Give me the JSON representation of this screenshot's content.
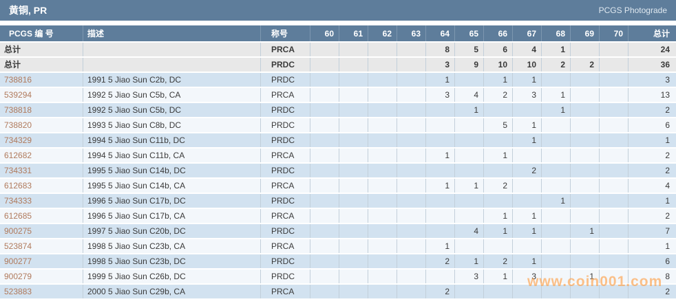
{
  "header": {
    "title": "黄铜, PR",
    "photograde_label": "PCGS Photograde"
  },
  "watermark": "www.coin001.com",
  "colors": {
    "header_bg": "#5e7d9b",
    "row_blue": "#d2e2f0",
    "row_white": "#f3f7fb",
    "row_total_bg": "#e8e8e8",
    "pcgs_number_link": "#b07a5c",
    "watermark": "#ff9d42"
  },
  "table": {
    "columns": {
      "pcgs_number": "PCGS 编 号",
      "description": "描述",
      "designation": "称号",
      "grades": [
        "60",
        "61",
        "62",
        "63",
        "64",
        "65",
        "66",
        "67",
        "68",
        "69",
        "70"
      ],
      "total": "总计"
    },
    "total_rows": [
      {
        "label": "总计",
        "description": "",
        "designation": "PRCA",
        "grades": [
          "",
          "",
          "",
          "",
          "8",
          "5",
          "6",
          "4",
          "1",
          "",
          ""
        ],
        "total": "24"
      },
      {
        "label": "总计",
        "description": "",
        "designation": "PRDC",
        "grades": [
          "",
          "",
          "",
          "",
          "3",
          "9",
          "10",
          "10",
          "2",
          "2",
          ""
        ],
        "total": "36"
      }
    ],
    "rows": [
      {
        "pcgs_number": "738816",
        "description": "1991 5 Jiao Sun C2b, DC",
        "designation": "PRDC",
        "grades": [
          "",
          "",
          "",
          "",
          "1",
          "",
          "1",
          "1",
          "",
          "",
          ""
        ],
        "total": "3"
      },
      {
        "pcgs_number": "539294",
        "description": "1992 5 Jiao Sun C5b, CA",
        "designation": "PRCA",
        "grades": [
          "",
          "",
          "",
          "",
          "3",
          "4",
          "2",
          "3",
          "1",
          "",
          ""
        ],
        "total": "13"
      },
      {
        "pcgs_number": "738818",
        "description": "1992 5 Jiao Sun C5b, DC",
        "designation": "PRDC",
        "grades": [
          "",
          "",
          "",
          "",
          "",
          "1",
          "",
          "",
          "1",
          "",
          ""
        ],
        "total": "2"
      },
      {
        "pcgs_number": "738820",
        "description": "1993 5 Jiao Sun C8b, DC",
        "designation": "PRDC",
        "grades": [
          "",
          "",
          "",
          "",
          "",
          "",
          "5",
          "1",
          "",
          "",
          ""
        ],
        "total": "6"
      },
      {
        "pcgs_number": "734329",
        "description": "1994 5 Jiao Sun C11b, DC",
        "designation": "PRDC",
        "grades": [
          "",
          "",
          "",
          "",
          "",
          "",
          "",
          "1",
          "",
          "",
          ""
        ],
        "total": "1"
      },
      {
        "pcgs_number": "612682",
        "description": "1994 5 Jiao Sun C11b, CA",
        "designation": "PRCA",
        "grades": [
          "",
          "",
          "",
          "",
          "1",
          "",
          "1",
          "",
          "",
          "",
          ""
        ],
        "total": "2"
      },
      {
        "pcgs_number": "734331",
        "description": "1995 5 Jiao Sun C14b, DC",
        "designation": "PRDC",
        "grades": [
          "",
          "",
          "",
          "",
          "",
          "",
          "",
          "2",
          "",
          "",
          ""
        ],
        "total": "2"
      },
      {
        "pcgs_number": "612683",
        "description": "1995 5 Jiao Sun C14b, CA",
        "designation": "PRCA",
        "grades": [
          "",
          "",
          "",
          "",
          "1",
          "1",
          "2",
          "",
          "",
          "",
          ""
        ],
        "total": "4"
      },
      {
        "pcgs_number": "734333",
        "description": "1996 5 Jiao Sun C17b, DC",
        "designation": "PRDC",
        "grades": [
          "",
          "",
          "",
          "",
          "",
          "",
          "",
          "",
          "1",
          "",
          ""
        ],
        "total": "1"
      },
      {
        "pcgs_number": "612685",
        "description": "1996 5 Jiao Sun C17b, CA",
        "designation": "PRCA",
        "grades": [
          "",
          "",
          "",
          "",
          "",
          "",
          "1",
          "1",
          "",
          "",
          ""
        ],
        "total": "2"
      },
      {
        "pcgs_number": "900275",
        "description": "1997 5 Jiao Sun C20b, DC",
        "designation": "PRDC",
        "grades": [
          "",
          "",
          "",
          "",
          "",
          "4",
          "1",
          "1",
          "",
          "1",
          ""
        ],
        "total": "7"
      },
      {
        "pcgs_number": "523874",
        "description": "1998 5 Jiao Sun C23b, CA",
        "designation": "PRCA",
        "grades": [
          "",
          "",
          "",
          "",
          "1",
          "",
          "",
          "",
          "",
          "",
          ""
        ],
        "total": "1"
      },
      {
        "pcgs_number": "900277",
        "description": "1998 5 Jiao Sun C23b, DC",
        "designation": "PRDC",
        "grades": [
          "",
          "",
          "",
          "",
          "2",
          "1",
          "2",
          "1",
          "",
          "",
          ""
        ],
        "total": "6"
      },
      {
        "pcgs_number": "900279",
        "description": "1999 5 Jiao Sun C26b, DC",
        "designation": "PRDC",
        "grades": [
          "",
          "",
          "",
          "",
          "",
          "3",
          "1",
          "3",
          "",
          "1",
          ""
        ],
        "total": "8"
      },
      {
        "pcgs_number": "523883",
        "description": "2000 5 Jiao Sun C29b, CA",
        "designation": "PRCA",
        "grades": [
          "",
          "",
          "",
          "",
          "2",
          "",
          "",
          "",
          "",
          "",
          ""
        ],
        "total": "2"
      }
    ]
  }
}
